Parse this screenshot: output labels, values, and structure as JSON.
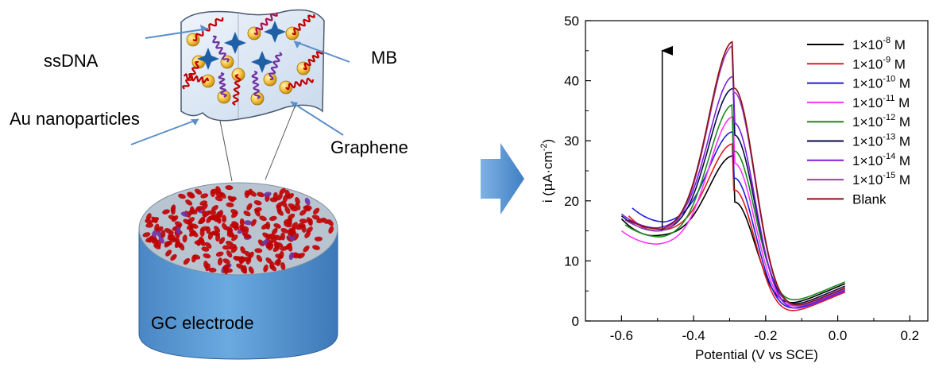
{
  "schematic": {
    "labels": {
      "ssdna": "ssDNA",
      "mb": "MB",
      "au": "Au nanoparticles",
      "graphene": "Graphene",
      "electrode": "GC electrode"
    }
  },
  "colors": {
    "electrode_blue": "#5b9bd5",
    "electrode_top": "#b8c4d0",
    "dna_red": "#c00000",
    "gold": "#f6c23e",
    "star_blue": "#1f5fa6",
    "pointer_blue": "#5b8fc9",
    "sheet_fill": "#dfe9f5"
  },
  "chart_data": {
    "type": "line",
    "title": "",
    "xlabel": "Potential (V vs SCE)",
    "ylabel_parts": {
      "pre": "i (",
      "mu": "μ",
      "unit": "A·cm",
      "exp": "-2",
      "post": ")"
    },
    "xlim": [
      -0.7,
      0.25
    ],
    "ylim": [
      0,
      50
    ],
    "xticks": [
      -0.6,
      -0.4,
      -0.2,
      0.0,
      0.2
    ],
    "xtick_labels": [
      "-0.6",
      "-0.4",
      "-0.2",
      "0.0",
      "0.2"
    ],
    "yticks": [
      0,
      10,
      20,
      30,
      40,
      50
    ],
    "ytick_labels": [
      "0",
      "10",
      "20",
      "30",
      "40",
      "50"
    ],
    "grid": false,
    "legend_position": "top-right",
    "series": [
      {
        "legend": {
          "base": "1×10",
          "exp": "-8",
          "unit": " M"
        },
        "color": "#000000",
        "x_start": -0.6,
        "y_start": 17.0,
        "min_x": -0.51,
        "min_y": 14.2,
        "peak_y": 27.5,
        "end_y": 6.2
      },
      {
        "legend": {
          "base": "1×10",
          "exp": "-9",
          "unit": " M"
        },
        "color": "#e31a1c",
        "x_start": -0.58,
        "y_start": 17.5,
        "min_x": -0.5,
        "min_y": 15.0,
        "peak_y": 29.5,
        "end_y": 4.8
      },
      {
        "legend": {
          "base": "1×10",
          "exp": "-10",
          "unit": " M"
        },
        "color": "#1f1fdf",
        "x_start": -0.57,
        "y_start": 18.8,
        "min_x": -0.48,
        "min_y": 16.5,
        "peak_y": 31.5,
        "end_y": 5.2
      },
      {
        "legend": {
          "base": "1×10",
          "exp": "-11",
          "unit": " M"
        },
        "color": "#ff33ff",
        "x_start": -0.6,
        "y_start": 15.0,
        "min_x": -0.5,
        "min_y": 12.8,
        "peak_y": 34.0,
        "end_y": 5.5
      },
      {
        "legend": {
          "base": "1×10",
          "exp": "-12",
          "unit": " M"
        },
        "color": "#1a8c1a",
        "x_start": -0.59,
        "y_start": 16.0,
        "min_x": -0.49,
        "min_y": 14.0,
        "peak_y": 36.0,
        "end_y": 6.5
      },
      {
        "legend": {
          "base": "1×10",
          "exp": "-13",
          "unit": " M"
        },
        "color": "#0a0a4a",
        "x_start": -0.6,
        "y_start": 17.5,
        "min_x": -0.5,
        "min_y": 15.0,
        "peak_y": 38.7,
        "end_y": 5.8
      },
      {
        "legend": {
          "base": "1×10",
          "exp": "-14",
          "unit": " M"
        },
        "color": "#7b1fe0",
        "x_start": -0.6,
        "y_start": 17.8,
        "min_x": -0.5,
        "min_y": 15.5,
        "peak_y": 40.7,
        "end_y": 5.0
      },
      {
        "legend": {
          "base": "1×10",
          "exp": "-15",
          "unit": " M"
        },
        "color": "#9a3fbf",
        "x_start": -0.59,
        "y_start": 16.8,
        "min_x": -0.49,
        "min_y": 15.0,
        "peak_y": 45.8,
        "end_y": 5.3
      },
      {
        "legend": {
          "base": "Blank",
          "exp": "",
          "unit": ""
        },
        "color": "#8b1010",
        "x_start": -0.58,
        "y_start": 16.8,
        "min_x": -0.49,
        "min_y": 15.3,
        "peak_y": 46.5,
        "end_y": 5.5
      }
    ],
    "peak_x": -0.29,
    "x_end": 0.02,
    "arrow": {
      "x": -0.487,
      "y_from": 15.5,
      "y_to": 45.0
    }
  }
}
